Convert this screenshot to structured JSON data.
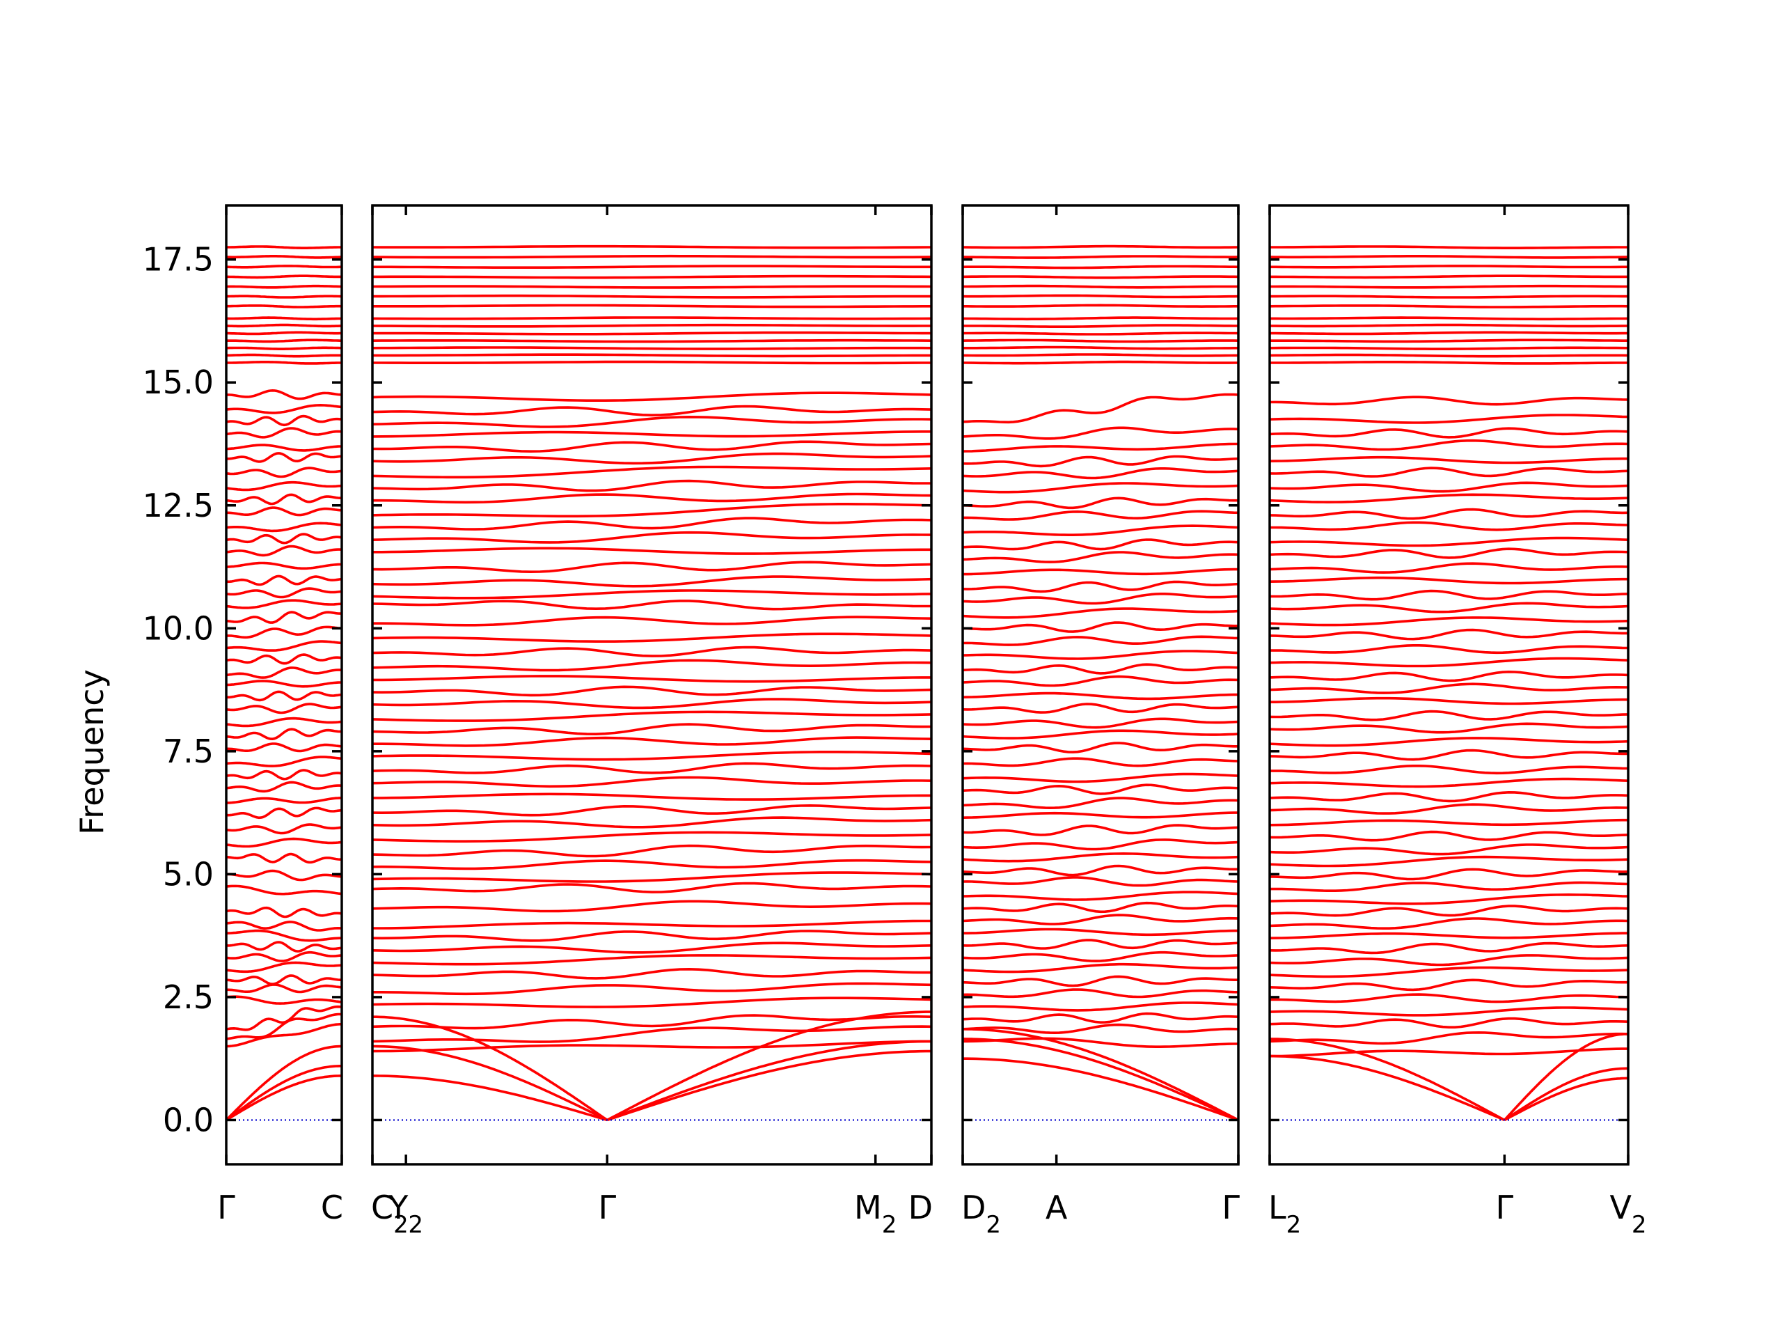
{
  "chart_data": {
    "type": "line",
    "ylabel": "Frequency",
    "xlabel": "",
    "title": "",
    "ylim": [
      -0.9,
      18.6
    ],
    "yticks": [
      0.0,
      2.5,
      5.0,
      7.5,
      10.0,
      12.5,
      15.0,
      17.5
    ],
    "ytick_labels": [
      "0.0",
      "2.5",
      "5.0",
      "7.5",
      "10.0",
      "12.5",
      "15.0",
      "17.5"
    ],
    "grid": false,
    "line_color": "#ff0000",
    "zero_line_color": "#0000cc",
    "panels": [
      {
        "xlim": [
          0,
          1
        ],
        "ticks": [
          {
            "x": 0,
            "label": "Γ",
            "sub": ""
          },
          {
            "x": 1,
            "label": "C",
            "sub": ""
          }
        ],
        "acoustic": [
          {
            "from": 0,
            "to": 1,
            "start": 0,
            "end": 1.5
          },
          {
            "from": 0,
            "to": 1,
            "start": 0,
            "end": 1.1
          },
          {
            "from": 0,
            "to": 1,
            "start": 0,
            "end": 0.9
          }
        ],
        "bands_start": [
          1.5,
          1.65,
          1.85,
          2.5,
          2.65,
          2.85,
          3.05,
          3.3,
          3.55,
          3.8,
          4.0,
          4.25,
          4.75,
          5.0,
          5.35,
          5.6,
          5.9,
          6.2,
          6.45,
          6.75,
          7.0,
          7.25,
          7.55,
          7.8,
          8.05,
          8.35,
          8.6,
          8.85,
          9.05,
          9.35,
          9.6,
          9.85,
          10.15,
          10.45,
          10.7,
          10.95,
          11.25,
          11.55,
          11.8,
          12.05,
          12.35,
          12.6,
          12.85,
          13.15,
          13.45,
          13.65,
          13.95,
          14.2,
          14.45,
          14.75,
          15.4,
          15.55,
          15.7,
          15.85,
          16.0,
          16.15,
          16.3,
          16.55,
          16.75,
          16.95,
          17.15,
          17.35,
          17.55,
          17.75
        ],
        "bands_end": [
          1.95,
          2.15,
          2.3,
          2.4,
          2.7,
          2.85,
          3.15,
          3.35,
          3.5,
          3.7,
          3.9,
          4.2,
          4.6,
          4.95,
          5.3,
          5.65,
          5.95,
          6.3,
          6.55,
          6.8,
          7.05,
          7.35,
          7.6,
          7.9,
          8.1,
          8.4,
          8.65,
          8.9,
          9.15,
          9.4,
          9.7,
          10.0,
          10.3,
          10.5,
          10.75,
          11.0,
          11.3,
          11.6,
          11.85,
          12.1,
          12.4,
          12.65,
          12.9,
          13.2,
          13.5,
          13.7,
          14.0,
          14.25,
          14.5,
          14.75,
          15.4,
          15.55,
          15.7,
          15.85,
          16.0,
          16.15,
          16.3,
          16.55,
          16.75,
          16.95,
          17.15,
          17.35,
          17.55,
          17.75
        ]
      },
      {
        "xlim": [
          0,
          1
        ],
        "ticks": [
          {
            "x": 0,
            "label": "C",
            "sub": "2"
          },
          {
            "x": 0.06,
            "label": "Y",
            "sub": "2"
          },
          {
            "x": 0.42,
            "label": "Γ",
            "sub": ""
          },
          {
            "x": 0.9,
            "label": "M",
            "sub": "2"
          },
          {
            "x": 1,
            "label": "D",
            "sub": ""
          }
        ],
        "gamma_x": 0.42,
        "acoustic": [
          {
            "from": 0,
            "to": 0.42,
            "start": 0.9,
            "end": 0
          },
          {
            "from": 0,
            "to": 0.42,
            "start": 1.5,
            "end": 0
          },
          {
            "from": 0,
            "to": 0.42,
            "start": 2.1,
            "end": 0
          },
          {
            "from": 0.42,
            "to": 1,
            "start": 0,
            "end": 1.4
          },
          {
            "from": 0.42,
            "to": 1,
            "start": 0,
            "end": 1.6
          },
          {
            "from": 0.42,
            "to": 1,
            "start": 0,
            "end": 2.2
          }
        ],
        "bands_start": [
          1.4,
          1.6,
          1.9,
          2.35,
          2.6,
          2.95,
          3.2,
          3.45,
          3.7,
          3.9,
          4.3,
          4.7,
          4.9,
          5.15,
          5.4,
          5.7,
          6.0,
          6.25,
          6.55,
          6.85,
          7.1,
          7.4,
          7.65,
          7.9,
          8.15,
          8.45,
          8.7,
          8.95,
          9.2,
          9.5,
          9.8,
          10.1,
          10.5,
          10.65,
          10.9,
          11.2,
          11.55,
          11.8,
          12.05,
          12.3,
          12.6,
          12.85,
          13.1,
          13.4,
          13.65,
          13.9,
          14.15,
          14.4,
          14.7,
          15.4,
          15.55,
          15.7,
          15.85,
          16.0,
          16.15,
          16.3,
          16.55,
          16.75,
          16.95,
          17.15,
          17.35,
          17.55,
          17.75
        ],
        "bands_end": [
          1.6,
          1.9,
          2.1,
          2.45,
          2.75,
          3.0,
          3.3,
          3.55,
          3.8,
          4.05,
          4.4,
          4.75,
          5.0,
          5.25,
          5.55,
          5.8,
          6.1,
          6.35,
          6.6,
          6.9,
          7.2,
          7.45,
          7.75,
          8.0,
          8.25,
          8.5,
          8.75,
          9.0,
          9.3,
          9.55,
          9.85,
          10.2,
          10.45,
          10.7,
          11.0,
          11.3,
          11.6,
          11.9,
          12.2,
          12.5,
          12.7,
          12.95,
          13.25,
          13.5,
          13.75,
          14.0,
          14.25,
          14.45,
          14.75,
          15.4,
          15.55,
          15.7,
          15.85,
          16.0,
          16.15,
          16.3,
          16.55,
          16.75,
          16.95,
          17.15,
          17.35,
          17.55,
          17.75
        ]
      },
      {
        "xlim": [
          0,
          1
        ],
        "ticks": [
          {
            "x": 0,
            "label": "D",
            "sub": "2"
          },
          {
            "x": 0.34,
            "label": "A",
            "sub": ""
          },
          {
            "x": 1,
            "label": "Γ",
            "sub": ""
          }
        ],
        "acoustic": [
          {
            "from": 0,
            "to": 1,
            "start": 1.25,
            "end": 0
          },
          {
            "from": 0,
            "to": 1,
            "start": 1.65,
            "end": 0
          },
          {
            "from": 0,
            "to": 1,
            "start": 1.85,
            "end": 0
          }
        ],
        "bands_start": [
          1.6,
          1.85,
          2.05,
          2.3,
          2.55,
          2.8,
          3.05,
          3.3,
          3.55,
          3.8,
          4.05,
          4.3,
          4.55,
          4.85,
          5.05,
          5.3,
          5.55,
          5.85,
          6.15,
          6.4,
          6.7,
          6.95,
          7.25,
          7.55,
          7.8,
          8.05,
          8.35,
          8.6,
          8.9,
          9.15,
          9.45,
          9.7,
          10.0,
          10.25,
          10.55,
          10.8,
          11.1,
          11.4,
          11.65,
          11.95,
          12.25,
          12.5,
          12.8,
          13.1,
          13.35,
          13.6,
          13.9,
          14.2,
          15.4,
          15.55,
          15.7,
          15.85,
          16.0,
          16.15,
          16.3,
          16.55,
          16.75,
          16.95,
          17.15,
          17.35,
          17.55,
          17.75
        ],
        "bands_end": [
          1.55,
          1.85,
          2.1,
          2.35,
          2.6,
          2.85,
          3.1,
          3.35,
          3.6,
          3.85,
          4.1,
          4.35,
          4.6,
          4.85,
          5.1,
          5.35,
          5.65,
          5.95,
          6.25,
          6.5,
          6.75,
          7.0,
          7.3,
          7.6,
          7.85,
          8.1,
          8.4,
          8.65,
          8.95,
          9.2,
          9.5,
          9.8,
          10.05,
          10.35,
          10.65,
          10.9,
          11.2,
          11.5,
          11.75,
          12.05,
          12.35,
          12.6,
          12.9,
          13.2,
          13.45,
          13.75,
          14.05,
          14.75,
          15.4,
          15.55,
          15.7,
          15.85,
          16.0,
          16.15,
          16.3,
          16.55,
          16.75,
          16.95,
          17.15,
          17.35,
          17.55,
          17.75
        ]
      },
      {
        "xlim": [
          0,
          1
        ],
        "ticks": [
          {
            "x": 0,
            "label": "L",
            "sub": "2"
          },
          {
            "x": 0.655,
            "label": "Γ",
            "sub": ""
          },
          {
            "x": 1,
            "label": "V",
            "sub": "2"
          }
        ],
        "gamma_x": 0.655,
        "acoustic": [
          {
            "from": 0,
            "to": 0.655,
            "start": 1.3,
            "end": 0
          },
          {
            "from": 0,
            "to": 0.655,
            "start": 1.65,
            "end": 0
          },
          {
            "from": 0.655,
            "to": 1,
            "start": 0,
            "end": 0.85
          },
          {
            "from": 0.655,
            "to": 1,
            "start": 0,
            "end": 1.05
          },
          {
            "from": 0.655,
            "to": 1,
            "start": 0,
            "end": 1.75
          }
        ],
        "bands_start": [
          1.3,
          1.6,
          1.95,
          2.2,
          2.45,
          2.7,
          2.95,
          3.2,
          3.45,
          3.7,
          3.95,
          4.2,
          4.45,
          4.7,
          4.95,
          5.2,
          5.45,
          5.75,
          6.0,
          6.3,
          6.55,
          6.85,
          7.1,
          7.4,
          7.65,
          7.95,
          8.2,
          8.5,
          8.75,
          9.0,
          9.3,
          9.55,
          9.85,
          10.1,
          10.4,
          10.65,
          10.95,
          11.2,
          11.5,
          11.75,
          12.05,
          12.3,
          12.6,
          12.85,
          13.15,
          13.4,
          13.7,
          13.95,
          14.25,
          14.6,
          15.4,
          15.55,
          15.7,
          15.85,
          16.0,
          16.15,
          16.3,
          16.55,
          16.75,
          16.95,
          17.15,
          17.35,
          17.55,
          17.75
        ],
        "bands_end": [
          1.45,
          1.75,
          2.0,
          2.25,
          2.5,
          2.8,
          3.05,
          3.3,
          3.55,
          3.8,
          4.05,
          4.3,
          4.55,
          4.8,
          5.05,
          5.3,
          5.55,
          5.8,
          6.1,
          6.35,
          6.6,
          6.9,
          7.15,
          7.45,
          7.7,
          8.0,
          8.25,
          8.55,
          8.8,
          9.05,
          9.35,
          9.6,
          9.9,
          10.15,
          10.45,
          10.7,
          11.0,
          11.25,
          11.55,
          11.8,
          12.1,
          12.35,
          12.65,
          12.9,
          13.2,
          13.45,
          13.75,
          14.0,
          14.3,
          14.65,
          15.4,
          15.55,
          15.7,
          15.85,
          16.0,
          16.15,
          16.3,
          16.55,
          16.75,
          16.95,
          17.15,
          17.35,
          17.55,
          17.75
        ]
      }
    ]
  }
}
